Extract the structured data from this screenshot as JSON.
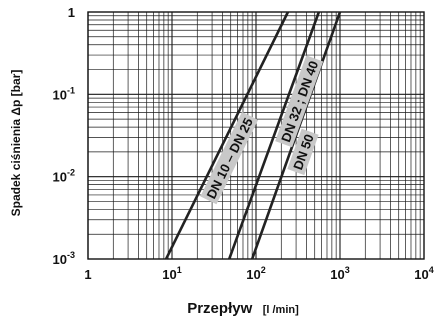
{
  "chart_data": {
    "type": "line",
    "x_scale": "log",
    "y_scale": "log",
    "xlim": [
      1,
      10000
    ],
    "ylim": [
      0.001,
      1
    ],
    "grid": true,
    "legend": "none",
    "xlabel": "Przepływ",
    "xunit": "[l /min]",
    "ylabel": "Spadek ciśnienia Δp [bar]",
    "x_ticks": [
      {
        "base": "1",
        "exp": ""
      },
      {
        "base": "10",
        "exp": "1"
      },
      {
        "base": "10",
        "exp": "2"
      },
      {
        "base": "10",
        "exp": "3"
      },
      {
        "base": "10",
        "exp": "4"
      }
    ],
    "y_ticks": [
      {
        "base": "1",
        "exp": ""
      },
      {
        "base": "10",
        "exp": "-1"
      },
      {
        "base": "10",
        "exp": "-2"
      },
      {
        "base": "10",
        "exp": "-3"
      }
    ],
    "series": [
      {
        "name": "DN 10 – DN 25",
        "points": [
          [
            8.5,
            0.001
          ],
          [
            240,
            1
          ]
        ]
      },
      {
        "name": "DN 32 ; DN 40",
        "points": [
          [
            48,
            0.001
          ],
          [
            560,
            1
          ]
        ]
      },
      {
        "name": "DN 50",
        "points": [
          [
            90,
            0.001
          ],
          [
            1000,
            1
          ]
        ]
      }
    ],
    "colors": {
      "line": "#222222",
      "grid": "#1a1a1a",
      "label_background": "#c8c8c8"
    }
  }
}
